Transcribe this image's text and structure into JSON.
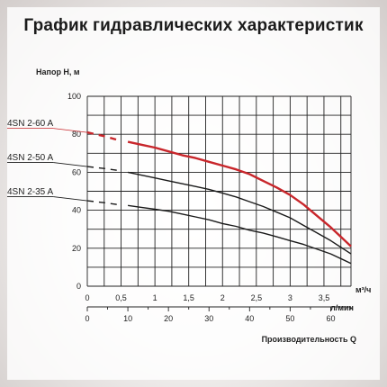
{
  "title": "График гидравлических характеристик",
  "chart_data": {
    "type": "line",
    "title": "График гидравлических характеристик",
    "ylabel": "Напор H, м",
    "xlabel": "Производительность Q",
    "x_unit_top": "м³/ч",
    "x_unit_bottom": "л/мин",
    "ylim": [
      0,
      100
    ],
    "xlim": [
      0,
      3.9
    ],
    "y_ticks": [
      0,
      20,
      40,
      60,
      80,
      100
    ],
    "x_ticks_top": [
      0,
      0.5,
      1,
      1.5,
      2,
      2.5,
      3,
      3.5
    ],
    "x_tick_labels_top": [
      "0",
      "0,5",
      "1",
      "1,5",
      "2",
      "2,5",
      "3",
      "3,5"
    ],
    "x_ticks_bottom": [
      0,
      10,
      20,
      30,
      40,
      50,
      60
    ],
    "grid": true,
    "colors": {
      "highlight": "#c8262b",
      "normal": "#1a1a1a"
    },
    "series": [
      {
        "name": "4SN 2-60 A",
        "highlight": true,
        "dashed_to": 0.45,
        "x": [
          0,
          0.25,
          0.45,
          0.6,
          0.8,
          1.0,
          1.2,
          1.4,
          1.6,
          1.8,
          2.0,
          2.2,
          2.4,
          2.6,
          2.8,
          3.0,
          3.2,
          3.4,
          3.6,
          3.9
        ],
        "y": [
          81,
          79,
          77,
          76,
          74.5,
          73,
          71,
          69,
          67.5,
          65.5,
          63.5,
          61.5,
          59,
          55.5,
          52,
          48,
          43,
          37,
          31,
          21
        ]
      },
      {
        "name": "4SN 2-50 A",
        "highlight": false,
        "dashed_to": 0.45,
        "x": [
          0,
          0.25,
          0.45,
          0.6,
          0.8,
          1.0,
          1.2,
          1.4,
          1.6,
          1.8,
          2.0,
          2.2,
          2.4,
          2.6,
          2.8,
          3.0,
          3.2,
          3.4,
          3.6,
          3.9
        ],
        "y": [
          63,
          62,
          61,
          60,
          58.5,
          57,
          55.5,
          54,
          52.5,
          51,
          49,
          47,
          44.5,
          42,
          39,
          36,
          32,
          28,
          24,
          17
        ]
      },
      {
        "name": "4SN 2-35 A",
        "highlight": false,
        "dashed_to": 0.45,
        "x": [
          0,
          0.25,
          0.45,
          0.6,
          0.8,
          1.0,
          1.2,
          1.4,
          1.6,
          1.8,
          2.0,
          2.2,
          2.4,
          2.6,
          2.8,
          3.0,
          3.2,
          3.4,
          3.6,
          3.9
        ],
        "y": [
          45,
          44,
          43,
          42.5,
          41.5,
          40.5,
          39.5,
          38,
          36.5,
          35,
          33,
          31.5,
          29.5,
          28,
          26,
          24,
          22,
          19.5,
          17,
          12
        ]
      }
    ]
  }
}
